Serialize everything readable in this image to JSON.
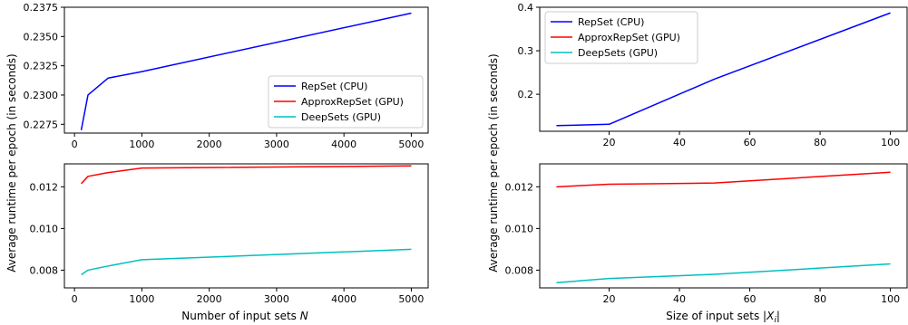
{
  "chart_data": [
    {
      "type": "line",
      "x": [
        100,
        200,
        500,
        1000,
        5000
      ],
      "series": [
        {
          "name": "RepSet (CPU)",
          "color": "#0000ff",
          "values": [
            0.227,
            0.23,
            0.23145,
            0.232,
            0.237
          ]
        }
      ],
      "xlim": [
        -150,
        5250
      ],
      "ylim": [
        0.22675,
        0.2375
      ],
      "xticks": [
        0,
        1000,
        2000,
        3000,
        4000,
        5000
      ],
      "xtick_labels": [
        "0",
        "1000",
        "2000",
        "3000",
        "4000",
        "5000"
      ],
      "yticks": [
        0.2275,
        0.23,
        0.2325,
        0.235,
        0.2375
      ],
      "ytick_labels": [
        "0.2275",
        "0.2300",
        "0.2325",
        "0.2350",
        "0.2375"
      ],
      "legend": {
        "placement": "lower-right",
        "entries": [
          {
            "label": "RepSet (CPU)",
            "color": "#0000ff"
          },
          {
            "label": "ApproxRepSet (GPU)",
            "color": "#ff0000"
          },
          {
            "label": "DeepSets (GPU)",
            "color": "#00bfbf"
          }
        ]
      }
    },
    {
      "type": "line",
      "x": [
        100,
        200,
        500,
        1000,
        5000
      ],
      "series": [
        {
          "name": "ApproxRepSet (GPU)",
          "color": "#ff0000",
          "values": [
            0.01215,
            0.0125,
            0.01268,
            0.0129,
            0.013
          ]
        },
        {
          "name": "DeepSets (GPU)",
          "color": "#00bfbf",
          "values": [
            0.00778,
            0.008,
            0.0082,
            0.0085,
            0.009
          ]
        }
      ],
      "xlim": [
        -150,
        5250
      ],
      "ylim": [
        0.00715,
        0.0131
      ],
      "xticks": [
        0,
        1000,
        2000,
        3000,
        4000,
        5000
      ],
      "xtick_labels": [
        "0",
        "1000",
        "2000",
        "3000",
        "4000",
        "5000"
      ],
      "yticks": [
        0.008,
        0.01,
        0.012
      ],
      "ytick_labels": [
        "0.008",
        "0.010",
        "0.012"
      ]
    },
    {
      "type": "line",
      "x": [
        5,
        20,
        50,
        100
      ],
      "series": [
        {
          "name": "RepSet (CPU)",
          "color": "#0000ff",
          "values": [
            0.128,
            0.131,
            0.235,
            0.387
          ]
        }
      ],
      "xlim": [
        0.25,
        104.75
      ],
      "ylim": [
        0.115,
        0.4
      ],
      "xticks": [
        20,
        40,
        60,
        80,
        100
      ],
      "xtick_labels": [
        "20",
        "40",
        "60",
        "80",
        "100"
      ],
      "yticks": [
        0.2,
        0.3,
        0.4
      ],
      "ytick_labels": [
        "0.2",
        "0.3",
        "0.4"
      ],
      "legend": {
        "placement": "upper-left",
        "entries": [
          {
            "label": "RepSet (CPU)",
            "color": "#0000ff"
          },
          {
            "label": "ApproxRepSet (GPU)",
            "color": "#ff0000"
          },
          {
            "label": "DeepSets (GPU)",
            "color": "#00bfbf"
          }
        ]
      }
    },
    {
      "type": "line",
      "x": [
        5,
        20,
        50,
        100
      ],
      "series": [
        {
          "name": "ApproxRepSet (GPU)",
          "color": "#ff0000",
          "values": [
            0.012,
            0.01212,
            0.01218,
            0.0127
          ]
        },
        {
          "name": "DeepSets (GPU)",
          "color": "#00bfbf",
          "values": [
            0.0074,
            0.0076,
            0.0078,
            0.0083
          ]
        }
      ],
      "xlim": [
        0.25,
        104.75
      ],
      "ylim": [
        0.00715,
        0.0131
      ],
      "xticks": [
        20,
        40,
        60,
        80,
        100
      ],
      "xtick_labels": [
        "20",
        "40",
        "60",
        "80",
        "100"
      ],
      "yticks": [
        0.008,
        0.01,
        0.012
      ],
      "ytick_labels": [
        "0.008",
        "0.010",
        "0.012"
      ]
    }
  ],
  "labels": {
    "left_ylabel": "Average runtime per epoch (in seconds)",
    "left_xlabel": "Number of input sets ",
    "left_xlabel_var": "N",
    "right_ylabel": "Average runtime per epoch (in seconds)",
    "right_xlabel": "Size of input sets |",
    "right_xlabel_var": "X",
    "right_xlabel_sub": "i",
    "right_xlabel_end": "|"
  }
}
